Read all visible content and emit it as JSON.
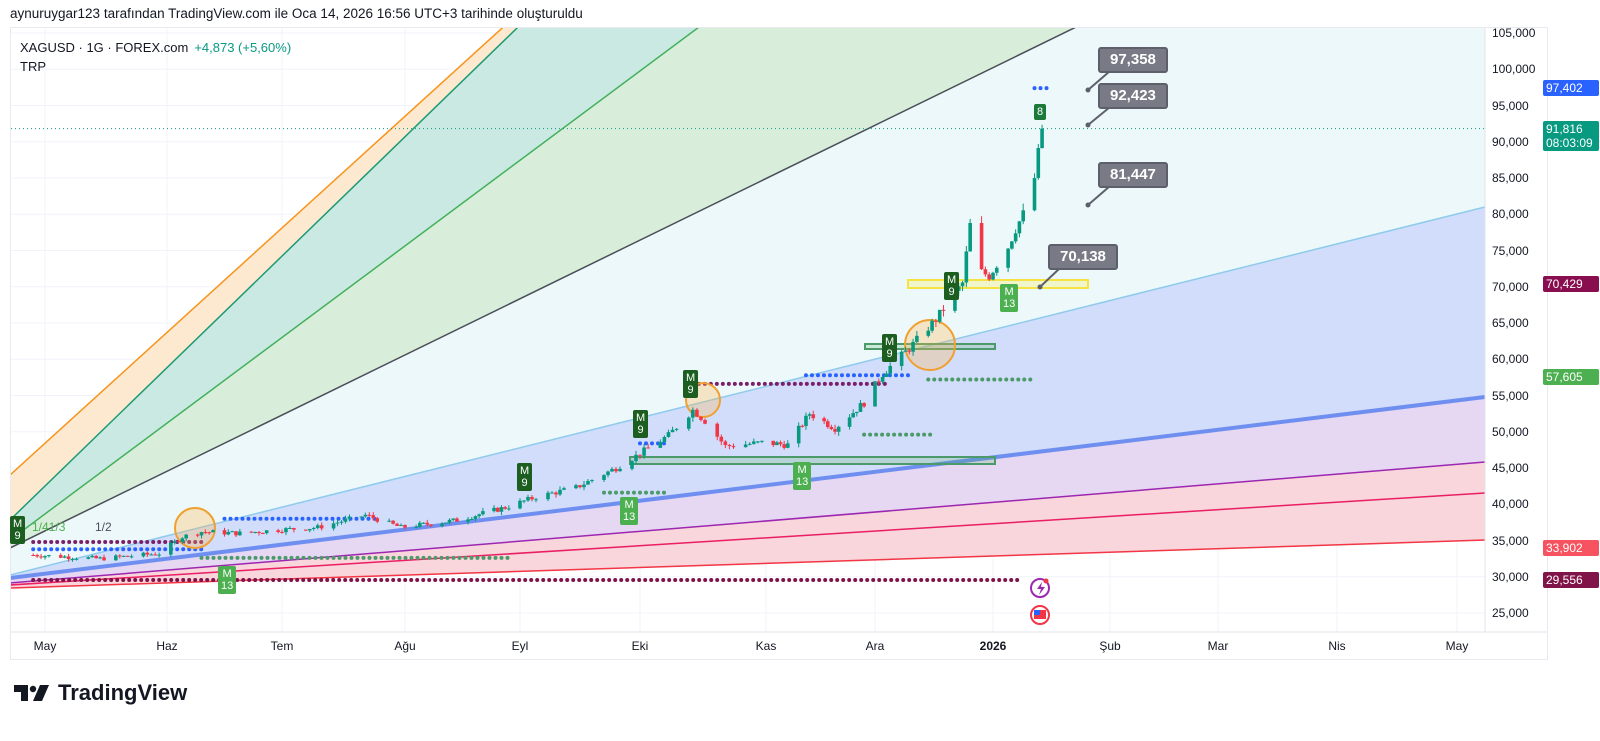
{
  "header": {
    "credit": "aynuruygar123 tarafından TradingView.com ile Oca 14, 2026 16:56 UTC+3 tarihinde oluşturuldu",
    "symbol_line": "XAGUSD · 1G · FOREX.com",
    "change": "+4,873 (+5,60%)",
    "indicator": "TRP"
  },
  "footer": {
    "logo_text": "TradingView"
  },
  "price_labels": [
    {
      "text": "97,402",
      "value": 97402,
      "color": "#2962ff"
    },
    {
      "text": "91,816",
      "sub": "08:03:09",
      "value": 91816,
      "color": "#089981"
    },
    {
      "text": "70,429",
      "value": 70429,
      "color": "#880e4f"
    },
    {
      "text": "57,605",
      "value": 57605,
      "color": "#4caf50"
    },
    {
      "text": "33,902",
      "value": 33902,
      "color": "#f7525f"
    },
    {
      "text": "29,556",
      "value": 29556,
      "color": "#801347"
    }
  ],
  "callouts": [
    {
      "text": "97,358",
      "value": 97358
    },
    {
      "text": "92,423",
      "value": 92423
    },
    {
      "text": "81,447",
      "value": 81447
    },
    {
      "text": "70,138",
      "value": 70138
    }
  ],
  "markers": {
    "m13": [
      "M",
      "13"
    ],
    "m9": [
      "M",
      "9"
    ],
    "last_count": "8",
    "fan_labels": [
      "1/41/3",
      "1/2"
    ]
  },
  "icons": [
    "lightning-event-icon",
    "us-flag-event-icon"
  ],
  "chart_data": {
    "type": "candlestick",
    "title": "XAGUSD · 1G · FOREX.com",
    "xlabel": "",
    "ylabel": "",
    "ylim": [
      25000,
      105000
    ],
    "y_ticks": [
      25000,
      30000,
      35000,
      40000,
      45000,
      50000,
      55000,
      60000,
      65000,
      70000,
      75000,
      80000,
      85000,
      90000,
      95000,
      100000,
      105000
    ],
    "y_tick_labels": [
      "25,000",
      "30,000",
      "35,000",
      "40,000",
      "45,000",
      "50,000",
      "55,000",
      "60,000",
      "65,000",
      "70,000",
      "75,000",
      "80,000",
      "85,000",
      "90,000",
      "95,000",
      "100,000",
      "105,000"
    ],
    "x_tick_labels": [
      "May",
      "Haz",
      "Tem",
      "Ağu",
      "Eyl",
      "Eki",
      "Kas",
      "Ara",
      "2026",
      "Şub",
      "Mar",
      "Nis",
      "May"
    ],
    "last_price": 91816,
    "close_path": [
      [
        "2025-04-28",
        33000
      ],
      [
        "2025-05-15",
        32500
      ],
      [
        "2025-05-30",
        33200
      ],
      [
        "2025-06-05",
        35500
      ],
      [
        "2025-06-10",
        36200
      ],
      [
        "2025-06-20",
        36000
      ],
      [
        "2025-07-01",
        36500
      ],
      [
        "2025-07-10",
        36800
      ],
      [
        "2025-07-22",
        38500
      ],
      [
        "2025-07-31",
        36800
      ],
      [
        "2025-08-15",
        37800
      ],
      [
        "2025-08-29",
        39700
      ],
      [
        "2025-09-05",
        41000
      ],
      [
        "2025-09-15",
        42300
      ],
      [
        "2025-09-25",
        45000
      ],
      [
        "2025-10-01",
        47000
      ],
      [
        "2025-10-08",
        49500
      ],
      [
        "2025-10-14",
        53000
      ],
      [
        "2025-10-17",
        51500
      ],
      [
        "2025-10-22",
        48000
      ],
      [
        "2025-10-31",
        48500
      ],
      [
        "2025-11-07",
        48200
      ],
      [
        "2025-11-13",
        52500
      ],
      [
        "2025-11-20",
        50500
      ],
      [
        "2025-11-28",
        54000
      ],
      [
        "2025-12-03",
        58000
      ],
      [
        "2025-12-10",
        61500
      ],
      [
        "2025-12-17",
        65500
      ],
      [
        "2025-12-24",
        70500
      ],
      [
        "2025-12-26",
        78500
      ],
      [
        "2025-12-29",
        72000
      ],
      [
        "2025-12-31",
        71500
      ],
      [
        "2026-01-05",
        75500
      ],
      [
        "2026-01-07",
        78000
      ],
      [
        "2026-01-09",
        80000
      ],
      [
        "2026-01-12",
        85000
      ],
      [
        "2026-01-14",
        91816
      ]
    ],
    "levels": [
      {
        "name": "blue-dots",
        "price": 97402,
        "from": "2026-01-12",
        "to": "2026-01-16",
        "color": "#2962ff"
      },
      {
        "name": "purple-dots",
        "price": 56600,
        "from": "2025-10-14",
        "to": "2025-12-05",
        "color": "#7b1f6a"
      },
      {
        "name": "blue-dots-2",
        "price": 57800,
        "from": "2025-11-12",
        "to": "2025-12-10",
        "color": "#2962ff"
      },
      {
        "name": "green-dots",
        "price": 57200,
        "from": "2025-12-15",
        "to": "2026-01-12",
        "color": "#4c9a6a"
      },
      {
        "name": "green-dots-2",
        "price": 49600,
        "from": "2025-11-28",
        "to": "2025-12-16",
        "color": "#4c9a6a"
      },
      {
        "name": "green-dots-3",
        "price": 41600,
        "from": "2025-09-22",
        "to": "2025-10-08",
        "color": "#4c9a6a"
      },
      {
        "name": "blue-dots-3",
        "price": 48400,
        "from": "2025-10-01",
        "to": "2025-10-08",
        "color": "#2962ff"
      },
      {
        "name": "blue-dots-4",
        "price": 38000,
        "from": "2025-06-16",
        "to": "2025-07-25",
        "color": "#2962ff"
      },
      {
        "name": "purple-dots-2",
        "price": 34800,
        "from": "2025-04-28",
        "to": "2025-06-10",
        "color": "#7b1f6a"
      },
      {
        "name": "blue-dots-5",
        "price": 33800,
        "from": "2025-04-28",
        "to": "2025-06-10",
        "color": "#2962ff"
      },
      {
        "name": "green-dots-4",
        "price": 32600,
        "from": "2025-06-10",
        "to": "2025-08-29",
        "color": "#4c9a6a"
      },
      {
        "name": "purple-dots-3",
        "price": 29556,
        "from": "2025-04-28",
        "to": "2026-01-08",
        "color": "#801347"
      }
    ]
  }
}
